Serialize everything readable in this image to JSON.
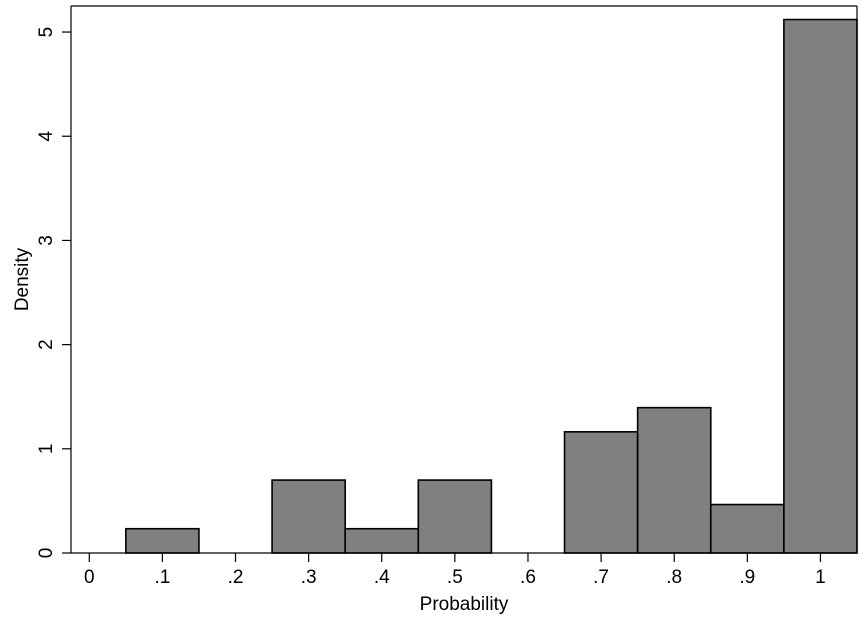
{
  "chart_data": {
    "type": "bar",
    "title": "",
    "xlabel": "Probability",
    "ylabel": "Density",
    "xlim": [
      -0.025,
      1.05
    ],
    "ylim": [
      0,
      5.25
    ],
    "x_ticks": [
      {
        "value": 0,
        "label": "0"
      },
      {
        "value": 0.1,
        "label": ".1"
      },
      {
        "value": 0.2,
        "label": ".2"
      },
      {
        "value": 0.3,
        "label": ".3"
      },
      {
        "value": 0.4,
        "label": ".4"
      },
      {
        "value": 0.5,
        "label": ".5"
      },
      {
        "value": 0.6,
        "label": ".6"
      },
      {
        "value": 0.7,
        "label": ".7"
      },
      {
        "value": 0.8,
        "label": ".8"
      },
      {
        "value": 0.9,
        "label": ".9"
      },
      {
        "value": 1,
        "label": "1"
      }
    ],
    "y_ticks": [
      {
        "value": 0,
        "label": "0"
      },
      {
        "value": 1,
        "label": "1"
      },
      {
        "value": 2,
        "label": "2"
      },
      {
        "value": 3,
        "label": "3"
      },
      {
        "value": 4,
        "label": "4"
      },
      {
        "value": 5,
        "label": "5"
      }
    ],
    "bins": [
      {
        "start": 0.05,
        "end": 0.15,
        "density": 0.233
      },
      {
        "start": 0.25,
        "end": 0.35,
        "density": 0.7
      },
      {
        "start": 0.35,
        "end": 0.45,
        "density": 0.233
      },
      {
        "start": 0.45,
        "end": 0.55,
        "density": 0.7
      },
      {
        "start": 0.65,
        "end": 0.75,
        "density": 1.163
      },
      {
        "start": 0.75,
        "end": 0.85,
        "density": 1.395
      },
      {
        "start": 0.85,
        "end": 0.95,
        "density": 0.465
      },
      {
        "start": 0.95,
        "end": 1.05,
        "density": 5.12
      }
    ],
    "grid": false,
    "colors": {
      "bar_fill": "#808080",
      "bar_stroke": "#000000",
      "background": "#ffffff",
      "axis": "#000000"
    }
  }
}
